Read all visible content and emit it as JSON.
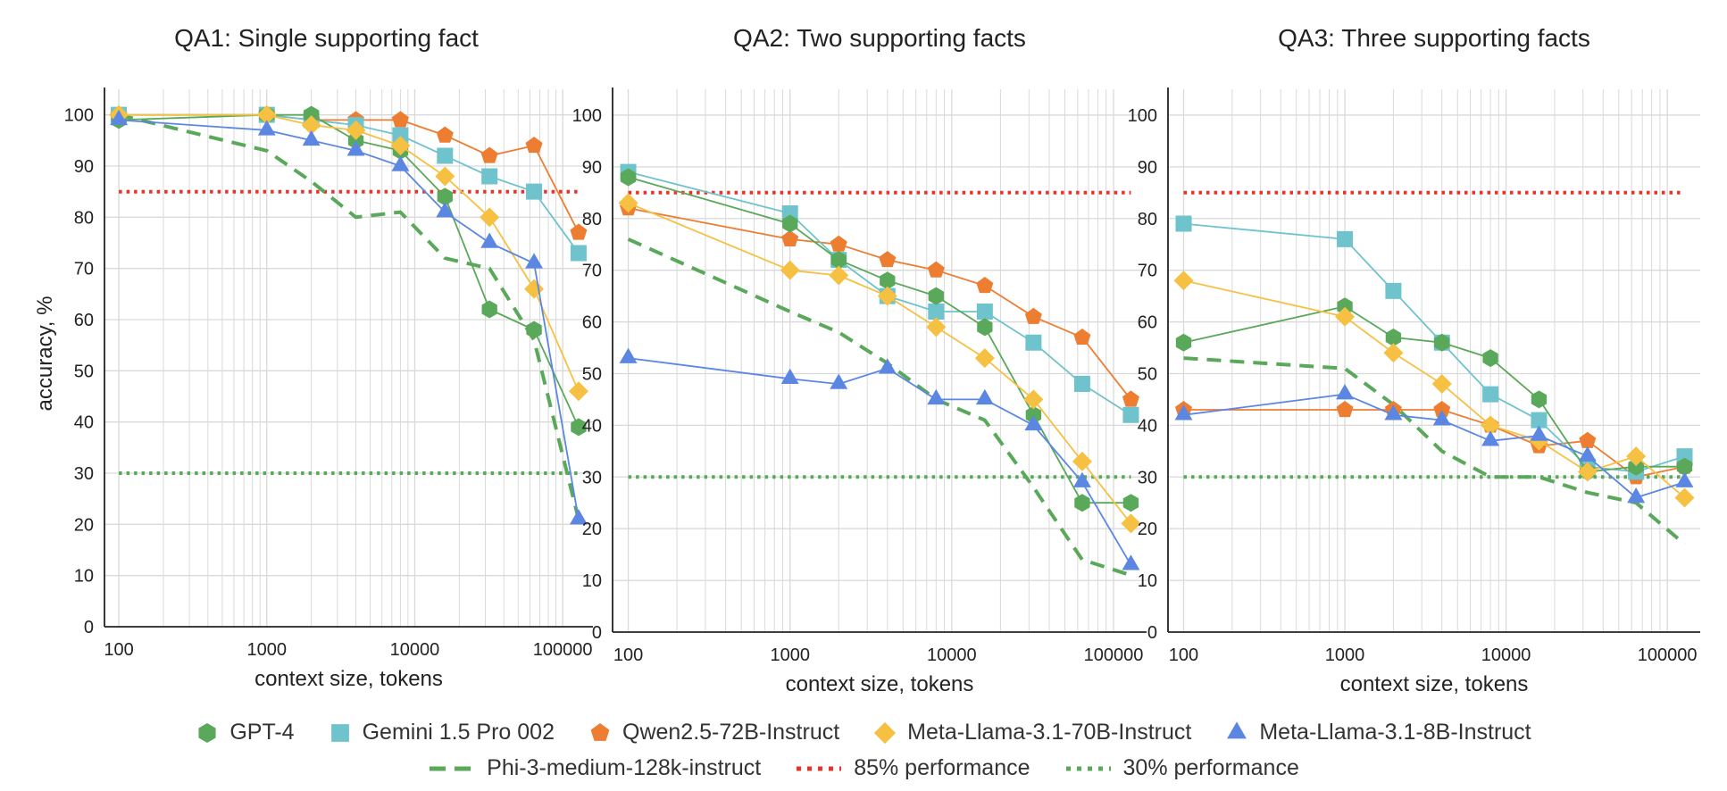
{
  "chart_data": [
    {
      "type": "line",
      "title": "QA1: Single supporting fact",
      "xlabel": "context size, tokens",
      "ylabel": "accuracy, %",
      "xscale": "log",
      "xlim": [
        80,
        160000
      ],
      "ylim": [
        0,
        105
      ],
      "xticks": [
        "100",
        "1000",
        "10000",
        "100000"
      ],
      "yticks": [
        "0",
        "10",
        "20",
        "30",
        "40",
        "50",
        "60",
        "70",
        "80",
        "90",
        "100"
      ],
      "grid": true,
      "series": [
        {
          "name": "GPT-4",
          "x": [
            100,
            1000,
            2000,
            4000,
            8000,
            16000,
            32000,
            64000,
            128000
          ],
          "y": [
            99,
            100,
            100,
            95,
            93,
            84,
            62,
            58,
            39
          ]
        },
        {
          "name": "Gemini 1.5 Pro 002",
          "x": [
            100,
            1000,
            2000,
            4000,
            8000,
            16000,
            32000,
            64000,
            128000
          ],
          "y": [
            100,
            100,
            99,
            98,
            96,
            92,
            88,
            85,
            73
          ]
        },
        {
          "name": "Qwen2.5-72B-Instruct",
          "x": [
            100,
            1000,
            2000,
            4000,
            8000,
            16000,
            32000,
            64000,
            128000
          ],
          "y": [
            100,
            100,
            99,
            99,
            99,
            96,
            92,
            94,
            77
          ]
        },
        {
          "name": "Meta-Llama-3.1-70B-Instruct",
          "x": [
            100,
            1000,
            2000,
            4000,
            8000,
            16000,
            32000,
            64000,
            128000
          ],
          "y": [
            100,
            100,
            98,
            97,
            94,
            88,
            80,
            66,
            46
          ]
        },
        {
          "name": "Meta-Llama-3.1-8B-Instruct",
          "x": [
            100,
            1000,
            2000,
            4000,
            8000,
            16000,
            32000,
            64000,
            128000
          ],
          "y": [
            99,
            97,
            95,
            93,
            90,
            81,
            75,
            71,
            21
          ]
        },
        {
          "name": "Phi-3-medium-128k-instruct",
          "x": [
            100,
            1000,
            2000,
            4000,
            8000,
            16000,
            32000,
            64000,
            128000
          ],
          "y": [
            100,
            93,
            87,
            80,
            81,
            72,
            70,
            56,
            21
          ]
        },
        {
          "name": "85% performance",
          "x": [
            100,
            128000
          ],
          "y": [
            85,
            85
          ]
        },
        {
          "name": "30% performance",
          "x": [
            100,
            128000
          ],
          "y": [
            30,
            30
          ]
        }
      ]
    },
    {
      "type": "line",
      "title": "QA2: Two supporting facts",
      "xlabel": "context size, tokens",
      "xscale": "log",
      "xlim": [
        80,
        160000
      ],
      "ylim": [
        0,
        105
      ],
      "xticks": [
        "100",
        "1000",
        "10000",
        "100000"
      ],
      "yticks": [
        "0",
        "10",
        "20",
        "30",
        "40",
        "50",
        "60",
        "70",
        "80",
        "90",
        "100"
      ],
      "grid": true,
      "series": [
        {
          "name": "GPT-4",
          "x": [
            100,
            1000,
            2000,
            4000,
            8000,
            16000,
            32000,
            64000,
            128000
          ],
          "y": [
            88,
            79,
            72,
            68,
            65,
            59,
            42,
            25,
            25
          ]
        },
        {
          "name": "Gemini 1.5 Pro 002",
          "x": [
            100,
            1000,
            2000,
            4000,
            8000,
            16000,
            32000,
            64000,
            128000
          ],
          "y": [
            89,
            81,
            72,
            65,
            62,
            62,
            56,
            48,
            42
          ]
        },
        {
          "name": "Qwen2.5-72B-Instruct",
          "x": [
            100,
            1000,
            2000,
            4000,
            8000,
            16000,
            32000,
            64000,
            128000
          ],
          "y": [
            82,
            76,
            75,
            72,
            70,
            67,
            61,
            57,
            45
          ]
        },
        {
          "name": "Meta-Llama-3.1-70B-Instruct",
          "x": [
            100,
            1000,
            2000,
            4000,
            8000,
            16000,
            32000,
            64000,
            128000
          ],
          "y": [
            83,
            70,
            69,
            65,
            59,
            53,
            45,
            33,
            21
          ]
        },
        {
          "name": "Meta-Llama-3.1-8B-Instruct",
          "x": [
            100,
            1000,
            2000,
            4000,
            8000,
            16000,
            32000,
            64000,
            128000
          ],
          "y": [
            53,
            49,
            48,
            51,
            45,
            45,
            40,
            29,
            13
          ]
        },
        {
          "name": "Phi-3-medium-128k-instruct",
          "x": [
            100,
            1000,
            2000,
            4000,
            8000,
            16000,
            32000,
            64000,
            128000
          ],
          "y": [
            76,
            62,
            58,
            52,
            45,
            41,
            28,
            14,
            11
          ]
        },
        {
          "name": "85% performance",
          "x": [
            100,
            128000
          ],
          "y": [
            85,
            85
          ]
        },
        {
          "name": "30% performance",
          "x": [
            100,
            128000
          ],
          "y": [
            30,
            30
          ]
        }
      ]
    },
    {
      "type": "line",
      "title": "QA3: Three supporting facts",
      "xlabel": "context size, tokens",
      "xscale": "log",
      "xlim": [
        80,
        160000
      ],
      "ylim": [
        0,
        105
      ],
      "xticks": [
        "100",
        "1000",
        "10000",
        "100000"
      ],
      "yticks": [
        "0",
        "10",
        "20",
        "30",
        "40",
        "50",
        "60",
        "70",
        "80",
        "90",
        "100"
      ],
      "grid": true,
      "series": [
        {
          "name": "GPT-4",
          "x": [
            100,
            1000,
            2000,
            4000,
            8000,
            16000,
            32000,
            64000,
            128000
          ],
          "y": [
            56,
            63,
            57,
            56,
            53,
            45,
            31,
            32,
            32
          ]
        },
        {
          "name": "Gemini 1.5 Pro 002",
          "x": [
            100,
            1000,
            2000,
            4000,
            8000,
            16000,
            32000,
            64000,
            128000
          ],
          "y": [
            79,
            76,
            66,
            56,
            46,
            41,
            32,
            31,
            34
          ]
        },
        {
          "name": "Qwen2.5-72B-Instruct",
          "x": [
            100,
            1000,
            2000,
            4000,
            8000,
            16000,
            32000,
            64000,
            128000
          ],
          "y": [
            43,
            43,
            43,
            43,
            40,
            36,
            37,
            30,
            32
          ]
        },
        {
          "name": "Meta-Llama-3.1-70B-Instruct",
          "x": [
            100,
            1000,
            2000,
            4000,
            8000,
            16000,
            32000,
            64000,
            128000
          ],
          "y": [
            68,
            61,
            54,
            48,
            40,
            37,
            31,
            34,
            26
          ]
        },
        {
          "name": "Meta-Llama-3.1-8B-Instruct",
          "x": [
            100,
            1000,
            2000,
            4000,
            8000,
            16000,
            32000,
            64000,
            128000
          ],
          "y": [
            42,
            46,
            42,
            41,
            37,
            38,
            34,
            26,
            29
          ]
        },
        {
          "name": "Phi-3-medium-128k-instruct",
          "x": [
            100,
            1000,
            2000,
            4000,
            8000,
            16000,
            32000,
            64000,
            128000
          ],
          "y": [
            53,
            51,
            44,
            35,
            30,
            30,
            27,
            25,
            17
          ]
        },
        {
          "name": "85% performance",
          "x": [
            100,
            128000
          ],
          "y": [
            85,
            85
          ]
        },
        {
          "name": "30% performance",
          "x": [
            100,
            128000
          ],
          "y": [
            30,
            30
          ]
        }
      ]
    }
  ],
  "legend": {
    "items": [
      {
        "label": "GPT-4",
        "series": "GPT-4",
        "icon": "hexagon-icon"
      },
      {
        "label": "Gemini 1.5 Pro 002",
        "series": "Gemini 1.5 Pro 002",
        "icon": "square-icon"
      },
      {
        "label": "Qwen2.5-72B-Instruct",
        "series": "Qwen2.5-72B-Instruct",
        "icon": "pentagon-icon"
      },
      {
        "label": "Meta-Llama-3.1-70B-Instruct",
        "series": "Meta-Llama-3.1-70B-Instruct",
        "icon": "diamond-icon"
      },
      {
        "label": "Meta-Llama-3.1-8B-Instruct",
        "series": "Meta-Llama-3.1-8B-Instruct",
        "icon": "triangle-icon"
      },
      {
        "label": "Phi-3-medium-128k-instruct",
        "series": "Phi-3-medium-128k-instruct",
        "icon": "dashed-line-icon"
      },
      {
        "label": "85% performance",
        "series": "85% performance",
        "icon": "dotted-line-icon"
      },
      {
        "label": "30% performance",
        "series": "30% performance",
        "icon": "dotted-line-icon"
      }
    ]
  },
  "styles": {
    "GPT-4": {
      "color": "#5aa85a",
      "marker": "hexagon",
      "line": "solid"
    },
    "Gemini 1.5 Pro 002": {
      "color": "#6fc3cc",
      "marker": "square",
      "line": "solid"
    },
    "Qwen2.5-72B-Instruct": {
      "color": "#ed7d31",
      "marker": "pentagon",
      "line": "solid"
    },
    "Meta-Llama-3.1-70B-Instruct": {
      "color": "#f6c142",
      "marker": "diamond",
      "line": "solid"
    },
    "Meta-Llama-3.1-8B-Instruct": {
      "color": "#5b87e3",
      "marker": "triangle",
      "line": "solid"
    },
    "Phi-3-medium-128k-instruct": {
      "color": "#5aa85a",
      "marker": "none",
      "line": "dashed"
    },
    "85% performance": {
      "color": "#e8332a",
      "marker": "none",
      "line": "dotted"
    },
    "30% performance": {
      "color": "#5aa85a",
      "marker": "none",
      "line": "dotted"
    }
  },
  "colors": {
    "grid": "#d9d9d9",
    "axis": "#222222",
    "text": "#222222"
  }
}
